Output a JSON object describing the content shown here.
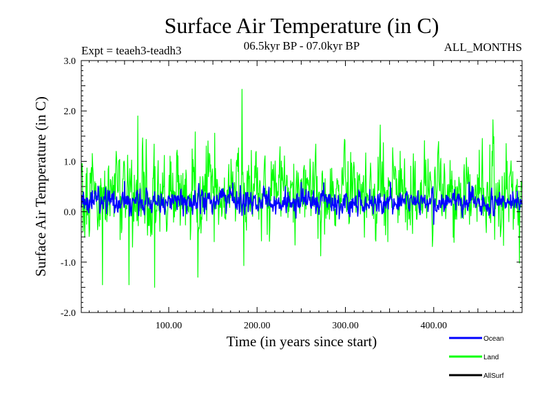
{
  "chart_data": {
    "type": "line",
    "title": "Surface Air Temperature (in C)",
    "subtitle_left": "Expt = teaeh3-teadh3",
    "subtitle_center": "06.5kyr BP - 07.0kyr BP",
    "subtitle_right": "ALL_MONTHS",
    "xlabel": "Time (in years since start)",
    "ylabel": "Surface Air Temperature (in C)",
    "xlim": [
      1,
      500
    ],
    "ylim": [
      -2.0,
      3.0
    ],
    "x_ticks": [
      {
        "value": 100,
        "label": "100.00"
      },
      {
        "value": 200,
        "label": "200.00"
      },
      {
        "value": 300,
        "label": "300.00"
      },
      {
        "value": 400,
        "label": "400.00"
      }
    ],
    "y_ticks": [
      {
        "value": 3.0,
        "label": "3.0"
      },
      {
        "value": 2.0,
        "label": "2.0"
      },
      {
        "value": 1.0,
        "label": "1.0"
      },
      {
        "value": 0.0,
        "label": "0.0"
      },
      {
        "value": -1.0,
        "label": "-1.0"
      },
      {
        "value": -2.0,
        "label": "-2.0"
      }
    ],
    "legend_position": "bottom-right",
    "series": [
      {
        "name": "Land",
        "color": "#00ff00",
        "x_start": 1,
        "x_step": 0.5,
        "mean": 0.35,
        "noise_amplitude": 0.45,
        "notable_points": [
          {
            "x": 65,
            "y": 1.9
          },
          {
            "x": 183,
            "y": 2.43
          },
          {
            "x": 25,
            "y": -1.45
          },
          {
            "x": 55,
            "y": -1.45
          },
          {
            "x": 84,
            "y": -1.5
          },
          {
            "x": 133,
            "y": -1.3
          },
          {
            "x": 185,
            "y": -1.07
          },
          {
            "x": 497,
            "y": -1.02
          }
        ]
      },
      {
        "name": "Ocean",
        "color": "#0000ff",
        "x_start": 1,
        "x_step": 0.5,
        "mean": 0.2,
        "noise_amplitude": 0.13,
        "notable_points": [
          {
            "x": 50,
            "y": 0.6
          },
          {
            "x": 250,
            "y": 0.58
          },
          {
            "x": 400,
            "y": -0.25
          }
        ]
      },
      {
        "name": "AllSurf",
        "color": "#000000",
        "x_start": 1,
        "x_step": 0.5,
        "values": []
      }
    ]
  }
}
